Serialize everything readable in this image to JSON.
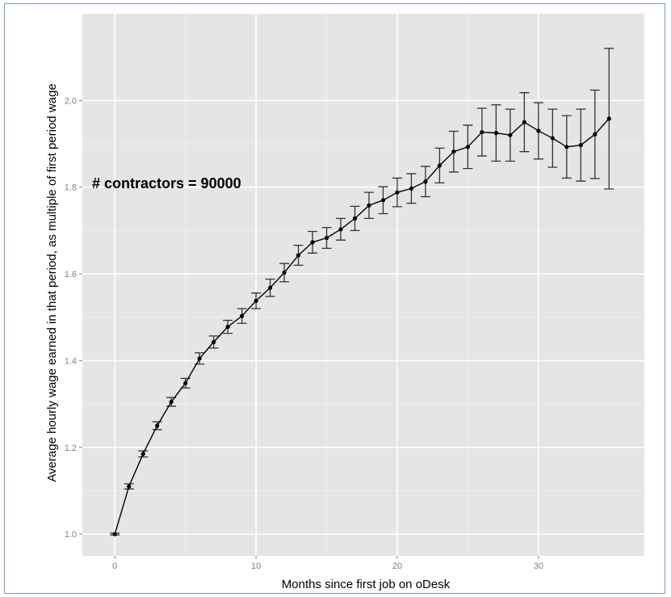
{
  "chart_data": {
    "type": "line",
    "xlabel": "Months since first job on oDesk",
    "ylabel": "Average hourly wage earned in that period, as multiple of first period wage",
    "annotation": "# contractors = 90000",
    "xlim": [
      -2.3,
      37.5
    ],
    "ylim": [
      0.95,
      2.2
    ],
    "x_ticks": [
      "0",
      "10",
      "20",
      "30"
    ],
    "y_ticks": [
      "1.0",
      "1.2",
      "1.4",
      "1.6",
      "1.8",
      "2.0"
    ],
    "grid": true,
    "legend": "none",
    "colors": {
      "panel": "#e5e5e5",
      "grid_major": "#ffffff",
      "grid_minor": "#f2f2f2",
      "line": "#000000",
      "errorbar": "#333333"
    },
    "series": [
      {
        "x": [
          0,
          1,
          2,
          3,
          4,
          5,
          6,
          7,
          8,
          9,
          10,
          11,
          12,
          13,
          14,
          15,
          16,
          17,
          18,
          19,
          20,
          21,
          22,
          23,
          24,
          25,
          26,
          27,
          28,
          29,
          30,
          31,
          32,
          33,
          34,
          35
        ],
        "y": [
          1.0,
          1.11,
          1.185,
          1.25,
          1.305,
          1.348,
          1.405,
          1.443,
          1.478,
          1.503,
          1.538,
          1.568,
          1.603,
          1.643,
          1.673,
          1.683,
          1.703,
          1.728,
          1.758,
          1.77,
          1.788,
          1.797,
          1.813,
          1.85,
          1.882,
          1.893,
          1.927,
          1.925,
          1.92,
          1.95,
          1.93,
          1.913,
          1.893,
          1.897,
          1.922,
          1.958
        ],
        "error": [
          0.002,
          0.006,
          0.007,
          0.009,
          0.01,
          0.011,
          0.013,
          0.014,
          0.015,
          0.017,
          0.018,
          0.02,
          0.021,
          0.023,
          0.025,
          0.024,
          0.025,
          0.028,
          0.03,
          0.031,
          0.033,
          0.034,
          0.035,
          0.04,
          0.047,
          0.05,
          0.055,
          0.065,
          0.06,
          0.068,
          0.065,
          0.067,
          0.072,
          0.083,
          0.102,
          0.162
        ]
      }
    ]
  }
}
